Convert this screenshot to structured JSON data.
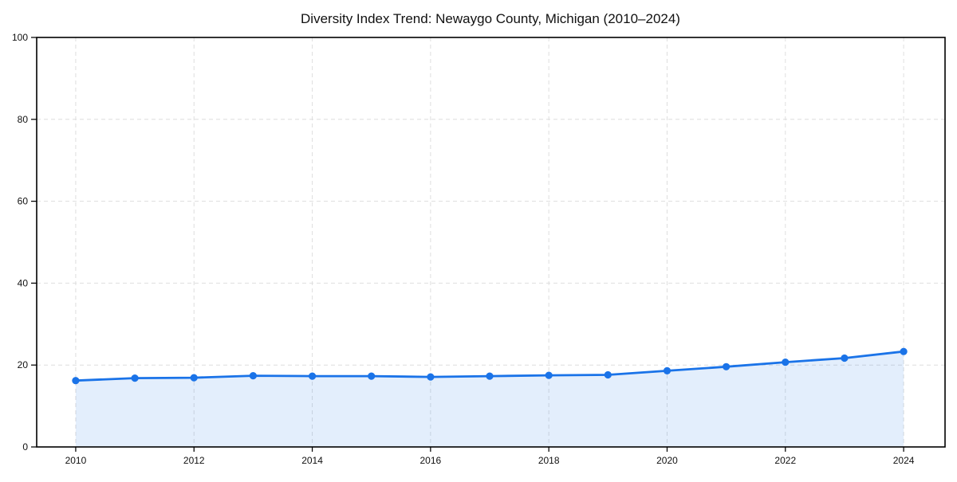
{
  "chart_data": {
    "type": "area",
    "title": "Diversity Index Trend: Newaygo County, Michigan (2010–2024)",
    "series_name": "Diversity Index",
    "x": [
      2010,
      2011,
      2012,
      2013,
      2014,
      2015,
      2016,
      2017,
      2018,
      2019,
      2020,
      2021,
      2022,
      2023,
      2024
    ],
    "values": [
      16.2,
      16.8,
      16.9,
      17.4,
      17.3,
      17.3,
      17.1,
      17.3,
      17.5,
      17.6,
      18.6,
      19.6,
      20.7,
      21.7,
      23.3
    ],
    "xlabel": "",
    "ylabel": "",
    "xticks": [
      "2010",
      "2012",
      "2014",
      "2016",
      "2018",
      "2020",
      "2022",
      "2024"
    ],
    "yticks": [
      "0",
      "20",
      "40",
      "60",
      "80",
      "100"
    ],
    "xlim": [
      2009.34,
      2024.7
    ],
    "ylim": [
      0,
      100
    ],
    "grid": "on",
    "grid_style": "dashed",
    "legend": "none",
    "marker": "circle",
    "colors": {
      "line": "#1a73e8",
      "marker": "#1a73e8",
      "fill": "#1a73e8",
      "fill_opacity": "0.12",
      "grid": "#dedede",
      "axis": "#000000",
      "text": "#111111",
      "plot_background": "#ffffff",
      "figure_background": "#ffffff"
    }
  }
}
